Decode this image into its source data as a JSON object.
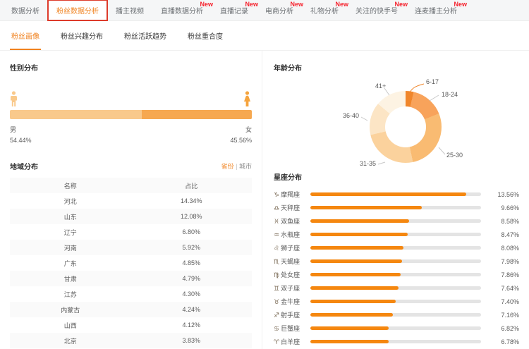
{
  "colors": {
    "accent_orange": "#f0821f",
    "badge_red": "#f5222d",
    "highlight_box_red": "#dd3b2b",
    "male_bar": "#f9c98b",
    "female_bar": "#f6a850",
    "zodiac_bar": "#f5870f",
    "bar_track": "#e4e4e4"
  },
  "nav": {
    "new_badge": "New",
    "tabs": [
      {
        "label": "数据分析",
        "new": false,
        "active": false
      },
      {
        "label": "粉丝数据分析",
        "new": false,
        "active": true
      },
      {
        "label": "播主视频",
        "new": false,
        "active": false
      },
      {
        "label": "直播数据分析",
        "new": true,
        "active": false
      },
      {
        "label": "直播记录",
        "new": true,
        "active": false
      },
      {
        "label": "电商分析",
        "new": true,
        "active": false
      },
      {
        "label": "礼物分析",
        "new": true,
        "active": false
      },
      {
        "label": "关注的快手号",
        "new": true,
        "active": false
      },
      {
        "label": "连麦播主分析",
        "new": true,
        "active": false
      }
    ]
  },
  "subtabs": [
    {
      "label": "粉丝画像",
      "active": true
    },
    {
      "label": "粉丝兴趣分布",
      "active": false
    },
    {
      "label": "粉丝活跃趋势",
      "active": false
    },
    {
      "label": "粉丝重合度",
      "active": false
    }
  ],
  "gender": {
    "title": "性别分布",
    "male_label": "男",
    "male_display": "54.44%",
    "male_pct": 54.44,
    "female_label": "女",
    "female_display": "45.56%",
    "female_pct": 45.56
  },
  "region": {
    "title": "地域分布",
    "toggle": {
      "province": "省份",
      "separator": "|",
      "city": "城市"
    },
    "columns": [
      "名称",
      "占比"
    ],
    "rows": [
      [
        "河北",
        "14.34%"
      ],
      [
        "山东",
        "12.08%"
      ],
      [
        "辽宁",
        "6.80%"
      ],
      [
        "河南",
        "5.92%"
      ],
      [
        "广东",
        "4.85%"
      ],
      [
        "甘肃",
        "4.79%"
      ],
      [
        "江苏",
        "4.30%"
      ],
      [
        "内蒙古",
        "4.24%"
      ],
      [
        "山西",
        "4.12%"
      ],
      [
        "北京",
        "3.83%"
      ]
    ]
  },
  "age": {
    "title": "年龄分布",
    "slices": [
      {
        "label": "6-17",
        "value": 3.6,
        "color": "#f0862b"
      },
      {
        "label": "18-24",
        "value": 15.3,
        "color": "#f8a35b"
      },
      {
        "label": "25-30",
        "value": 27.8,
        "color": "#f9bb72"
      },
      {
        "label": "31-35",
        "value": 24.7,
        "color": "#fbd29d"
      },
      {
        "label": "36-40",
        "value": 14.7,
        "color": "#fce5c5"
      },
      {
        "label": "41+",
        "value": 13.9,
        "color": "#fdf3e3"
      }
    ]
  },
  "zodiac": {
    "title": "星座分布",
    "track_max": 14.82,
    "items": [
      {
        "symbol": "♑",
        "name": "摩羯座",
        "value": 13.56,
        "display": "13.56%"
      },
      {
        "symbol": "♎",
        "name": "天秤座",
        "value": 9.66,
        "display": "9.66%"
      },
      {
        "symbol": "♓",
        "name": "双鱼座",
        "value": 8.58,
        "display": "8.58%"
      },
      {
        "symbol": "♒",
        "name": "水瓶座",
        "value": 8.47,
        "display": "8.47%"
      },
      {
        "symbol": "♌",
        "name": "狮子座",
        "value": 8.08,
        "display": "8.08%"
      },
      {
        "symbol": "♏",
        "name": "天蝎座",
        "value": 7.98,
        "display": "7.98%"
      },
      {
        "symbol": "♍",
        "name": "处女座",
        "value": 7.86,
        "display": "7.86%"
      },
      {
        "symbol": "♊",
        "name": "双子座",
        "value": 7.64,
        "display": "7.64%"
      },
      {
        "symbol": "♉",
        "name": "金牛座",
        "value": 7.4,
        "display": "7.40%"
      },
      {
        "symbol": "♐",
        "name": "射手座",
        "value": 7.16,
        "display": "7.16%"
      },
      {
        "symbol": "♋",
        "name": "巨蟹座",
        "value": 6.82,
        "display": "6.82%"
      },
      {
        "symbol": "♈",
        "name": "白羊座",
        "value": 6.78,
        "display": "6.78%"
      }
    ]
  },
  "chart_data": [
    {
      "type": "pie",
      "title": "年龄分布",
      "donut": true,
      "categories": [
        "6-17",
        "18-24",
        "25-30",
        "31-35",
        "36-40",
        "41+"
      ],
      "values": [
        3.6,
        15.3,
        27.8,
        24.7,
        14.7,
        13.9
      ],
      "colors": [
        "#f0862b",
        "#f8a35b",
        "#f9bb72",
        "#fbd29d",
        "#fce5c5",
        "#fdf3e3"
      ],
      "legend_position": "outside-labels",
      "note": "values estimated from slice angles; no numeric labels shown"
    },
    {
      "type": "bar",
      "title": "星座分布",
      "orientation": "horizontal",
      "categories": [
        "摩羯座",
        "天秤座",
        "双鱼座",
        "水瓶座",
        "狮子座",
        "天蝎座",
        "处女座",
        "双子座",
        "金牛座",
        "射手座",
        "巨蟹座",
        "白羊座"
      ],
      "values": [
        13.56,
        9.66,
        8.58,
        8.47,
        8.08,
        7.98,
        7.86,
        7.64,
        7.4,
        7.16,
        6.82,
        6.78
      ],
      "xlabel": "",
      "ylabel": "",
      "xlim": [
        0,
        14.82
      ],
      "unit": "%",
      "grid": false
    },
    {
      "type": "bar",
      "title": "性别分布",
      "orientation": "horizontal-stacked",
      "categories": [
        "男",
        "女"
      ],
      "values": [
        54.44,
        45.56
      ],
      "unit": "%"
    },
    {
      "type": "table",
      "title": "地域分布",
      "columns": [
        "名称",
        "占比"
      ],
      "rows": [
        [
          "河北",
          "14.34%"
        ],
        [
          "山东",
          "12.08%"
        ],
        [
          "辽宁",
          "6.80%"
        ],
        [
          "河南",
          "5.92%"
        ],
        [
          "广东",
          "4.85%"
        ],
        [
          "甘肃",
          "4.79%"
        ],
        [
          "江苏",
          "4.30%"
        ],
        [
          "内蒙古",
          "4.24%"
        ],
        [
          "山西",
          "4.12%"
        ],
        [
          "北京",
          "3.83%"
        ]
      ]
    }
  ]
}
